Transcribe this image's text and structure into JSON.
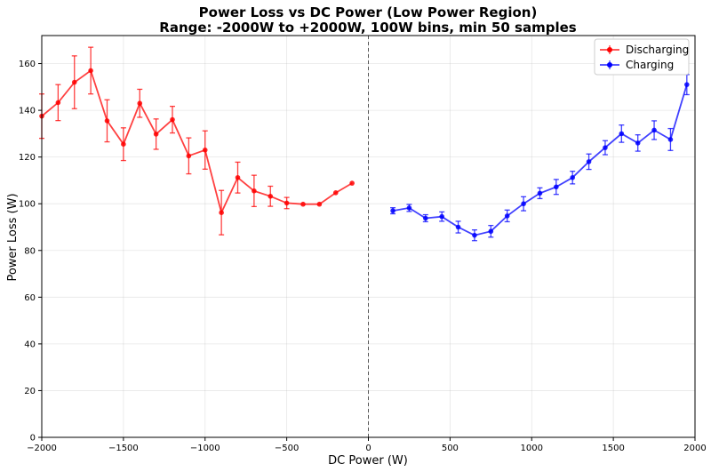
{
  "chart_data": {
    "type": "line",
    "title": "Power Loss vs DC Power (Low Power Region)",
    "subtitle": "Range: -2000W to +2000W, 100W bins, min 50 samples",
    "xlabel": "DC Power (W)",
    "ylabel": "Power Loss (W)",
    "xlim": [
      -2000,
      2000
    ],
    "ylim": [
      0,
      172
    ],
    "x_ticks": [
      -2000,
      -1500,
      -1000,
      -500,
      0,
      500,
      1000,
      1500,
      2000
    ],
    "x_tick_labels": [
      "−2000",
      "−1500",
      "−1000",
      "−500",
      "0",
      "500",
      "1000",
      "1500",
      "2000"
    ],
    "y_ticks": [
      0,
      20,
      40,
      60,
      80,
      100,
      120,
      140,
      160
    ],
    "y_tick_labels": [
      "0",
      "20",
      "40",
      "60",
      "80",
      "100",
      "120",
      "140",
      "160"
    ],
    "grid": true,
    "vline_x": 0,
    "legend_position": "top-right",
    "series": [
      {
        "name": "Discharging",
        "color": "#ff0000",
        "x": [
          -2000,
          -1900,
          -1800,
          -1700,
          -1600,
          -1500,
          -1400,
          -1300,
          -1200,
          -1100,
          -1000,
          -900,
          -800,
          -700,
          -600,
          -500,
          -400,
          -300,
          -200,
          -100
        ],
        "values": [
          137.5,
          143.3,
          152.0,
          157.0,
          135.5,
          125.5,
          143.0,
          129.8,
          136.0,
          120.5,
          123.0,
          96.2,
          111.2,
          105.5,
          103.2,
          100.3,
          99.8,
          99.8,
          104.7,
          108.8
        ],
        "errors": [
          9.5,
          7.7,
          11.3,
          10.0,
          9.0,
          7.0,
          6.0,
          6.5,
          5.7,
          7.7,
          8.2,
          9.5,
          6.6,
          6.7,
          4.3,
          2.4,
          0,
          0,
          0,
          0
        ]
      },
      {
        "name": "Charging",
        "color": "#0000ff",
        "x": [
          150,
          250,
          350,
          450,
          550,
          650,
          750,
          850,
          950,
          1050,
          1150,
          1250,
          1350,
          1450,
          1550,
          1650,
          1750,
          1850,
          1950
        ],
        "values": [
          97.0,
          98.2,
          93.8,
          94.5,
          90.0,
          86.5,
          88.2,
          94.8,
          100.0,
          104.5,
          107.2,
          111.2,
          118.0,
          124.0,
          130.0,
          126.0,
          131.5,
          127.5,
          151.0
        ],
        "errors": [
          1.3,
          1.5,
          1.5,
          2.0,
          2.5,
          2.3,
          2.5,
          2.5,
          3.0,
          2.3,
          3.2,
          2.7,
          3.3,
          3.0,
          3.7,
          3.5,
          4.0,
          4.7,
          4.3
        ]
      }
    ]
  }
}
